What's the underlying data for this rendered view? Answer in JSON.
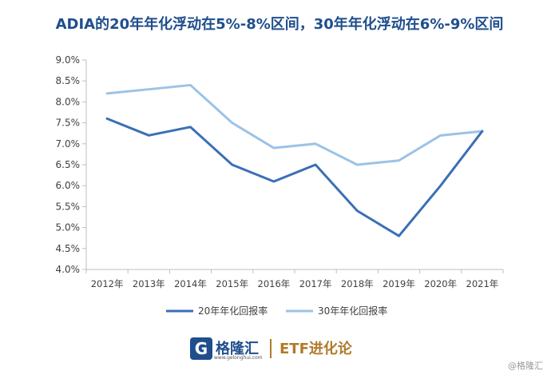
{
  "title": "ADIA的20年年化浮动在5%-8%区间，30年年化浮动在6%-9%区间",
  "chart_data": {
    "type": "line",
    "categories": [
      "2012年",
      "2013年",
      "2014年",
      "2015年",
      "2016年",
      "2017年",
      "2018年",
      "2019年",
      "2020年",
      "2021年"
    ],
    "series": [
      {
        "name": "20年年化回报率",
        "color": "#3b6fb6",
        "values": [
          7.6,
          7.2,
          7.4,
          6.5,
          6.1,
          6.5,
          5.4,
          4.8,
          6.0,
          7.3
        ]
      },
      {
        "name": "30年年化回报率",
        "color": "#9cc3e6",
        "values": [
          8.2,
          8.3,
          8.4,
          7.5,
          6.9,
          7.0,
          6.5,
          6.6,
          7.2,
          7.3
        ]
      }
    ],
    "yticks": [
      "9.0%",
      "8.5%",
      "8.0%",
      "7.5%",
      "7.0%",
      "6.5%",
      "6.0%",
      "5.5%",
      "5.0%",
      "4.5%",
      "4.0%"
    ],
    "ylim": [
      4.0,
      9.0
    ],
    "xlabel": "",
    "ylabel": "",
    "grid": false,
    "legend": "bottom-center"
  },
  "footer": {
    "logo_glyph": "G",
    "brand_name": "格隆汇",
    "brand_url": "www.gelonghui.com",
    "etf_label": "ETF进化论",
    "watermark": "@格隆汇"
  }
}
